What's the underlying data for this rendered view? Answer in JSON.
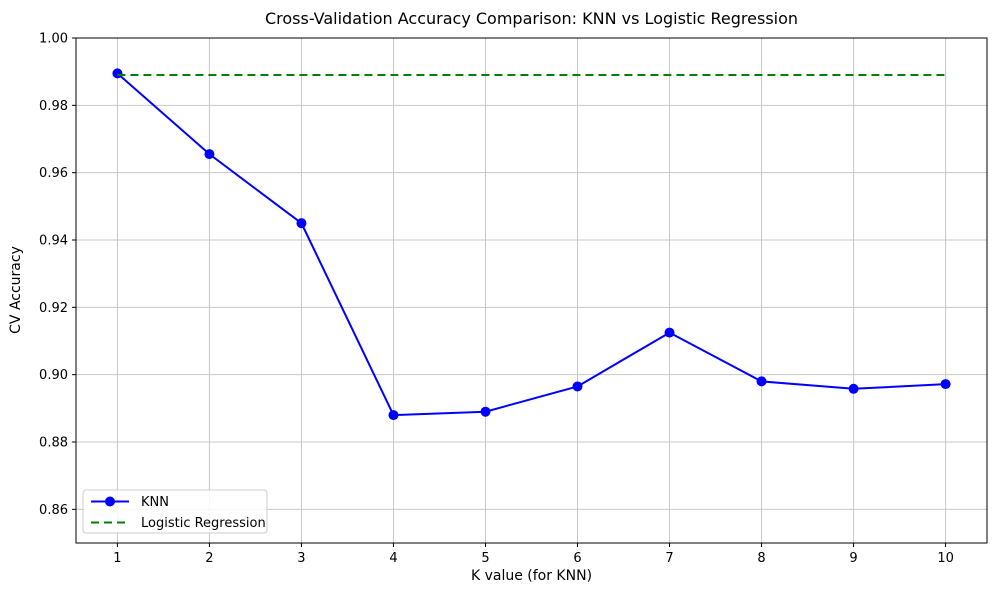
{
  "chart_data": {
    "type": "line",
    "title": "Cross-Validation Accuracy Comparison: KNN vs Logistic Regression",
    "xlabel": "K value (for KNN)",
    "ylabel": "CV Accuracy",
    "x": [
      1,
      2,
      3,
      4,
      5,
      6,
      7,
      8,
      9,
      10
    ],
    "series": [
      {
        "name": "KNN",
        "color": "#0000ff",
        "line_style": "solid",
        "marker": "circle",
        "values": [
          0.9895,
          0.9655,
          0.945,
          0.888,
          0.889,
          0.8965,
          0.9125,
          0.898,
          0.8958,
          0.8972
        ]
      },
      {
        "name": "Logistic Regression",
        "color": "#008000",
        "line_style": "dashed",
        "marker": "none",
        "values": [
          0.989,
          0.989,
          0.989,
          0.989,
          0.989,
          0.989,
          0.989,
          0.989,
          0.989,
          0.989
        ]
      }
    ],
    "xlim": [
      0.55,
      10.45
    ],
    "ylim": [
      0.85,
      1.0
    ],
    "xticks": [
      1,
      2,
      3,
      4,
      5,
      6,
      7,
      8,
      9,
      10
    ],
    "yticks": [
      0.86,
      0.88,
      0.9,
      0.92,
      0.94,
      0.96,
      0.98,
      1.0
    ],
    "grid": true,
    "grid_color": "#c8c8c8",
    "axis_color": "#000000",
    "legend_position": "lower left",
    "legend_border_color": "#cccccc"
  }
}
